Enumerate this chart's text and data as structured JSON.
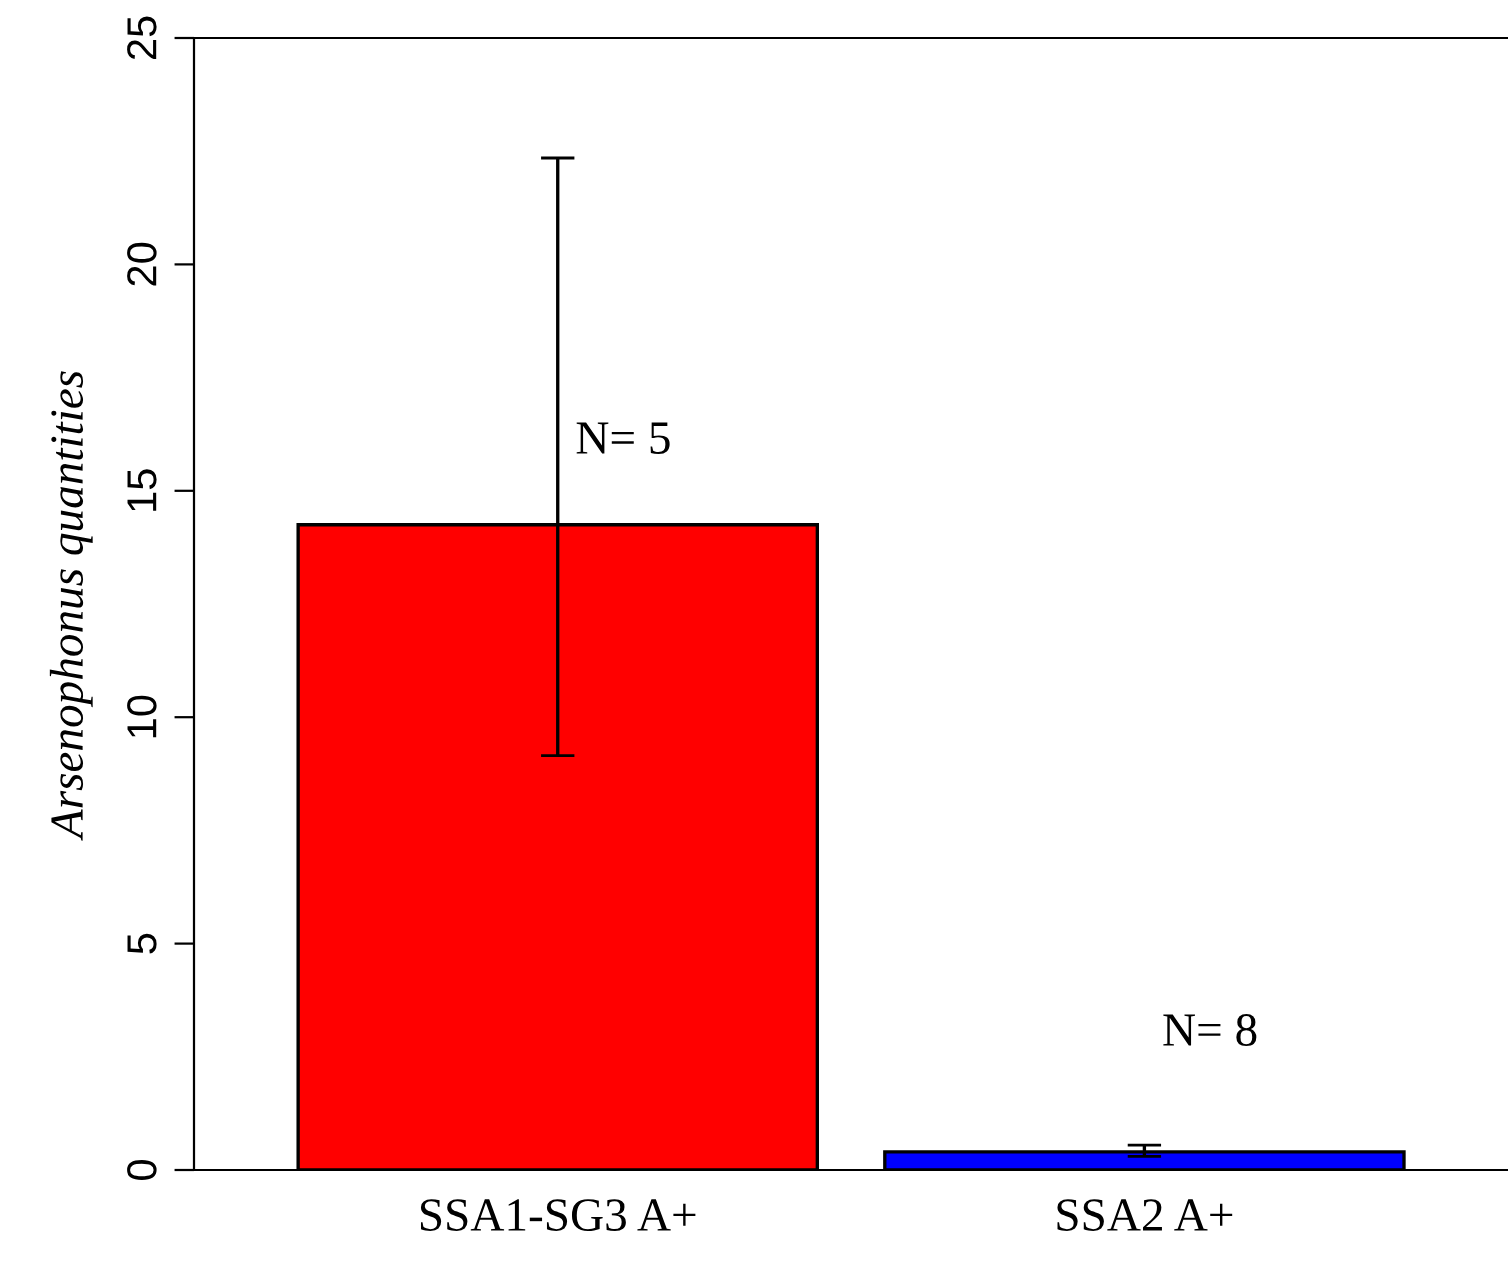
{
  "chart_data": {
    "type": "bar",
    "ylabel": "Arsenophonus quantities",
    "categories": [
      "SSA1-SG3 A+",
      "SSA2 A+"
    ],
    "values": [
      14.25,
      0.4
    ],
    "colors": [
      "#ff0000",
      "#0000ff"
    ],
    "errors": [
      [
        9.15,
        22.35
      ],
      [
        0.3,
        0.55
      ]
    ],
    "ylim": [
      0,
      25
    ],
    "yticks": [
      0,
      5,
      10,
      15,
      20,
      25
    ],
    "annotations": [
      "N= 5",
      "N= 8"
    ]
  }
}
